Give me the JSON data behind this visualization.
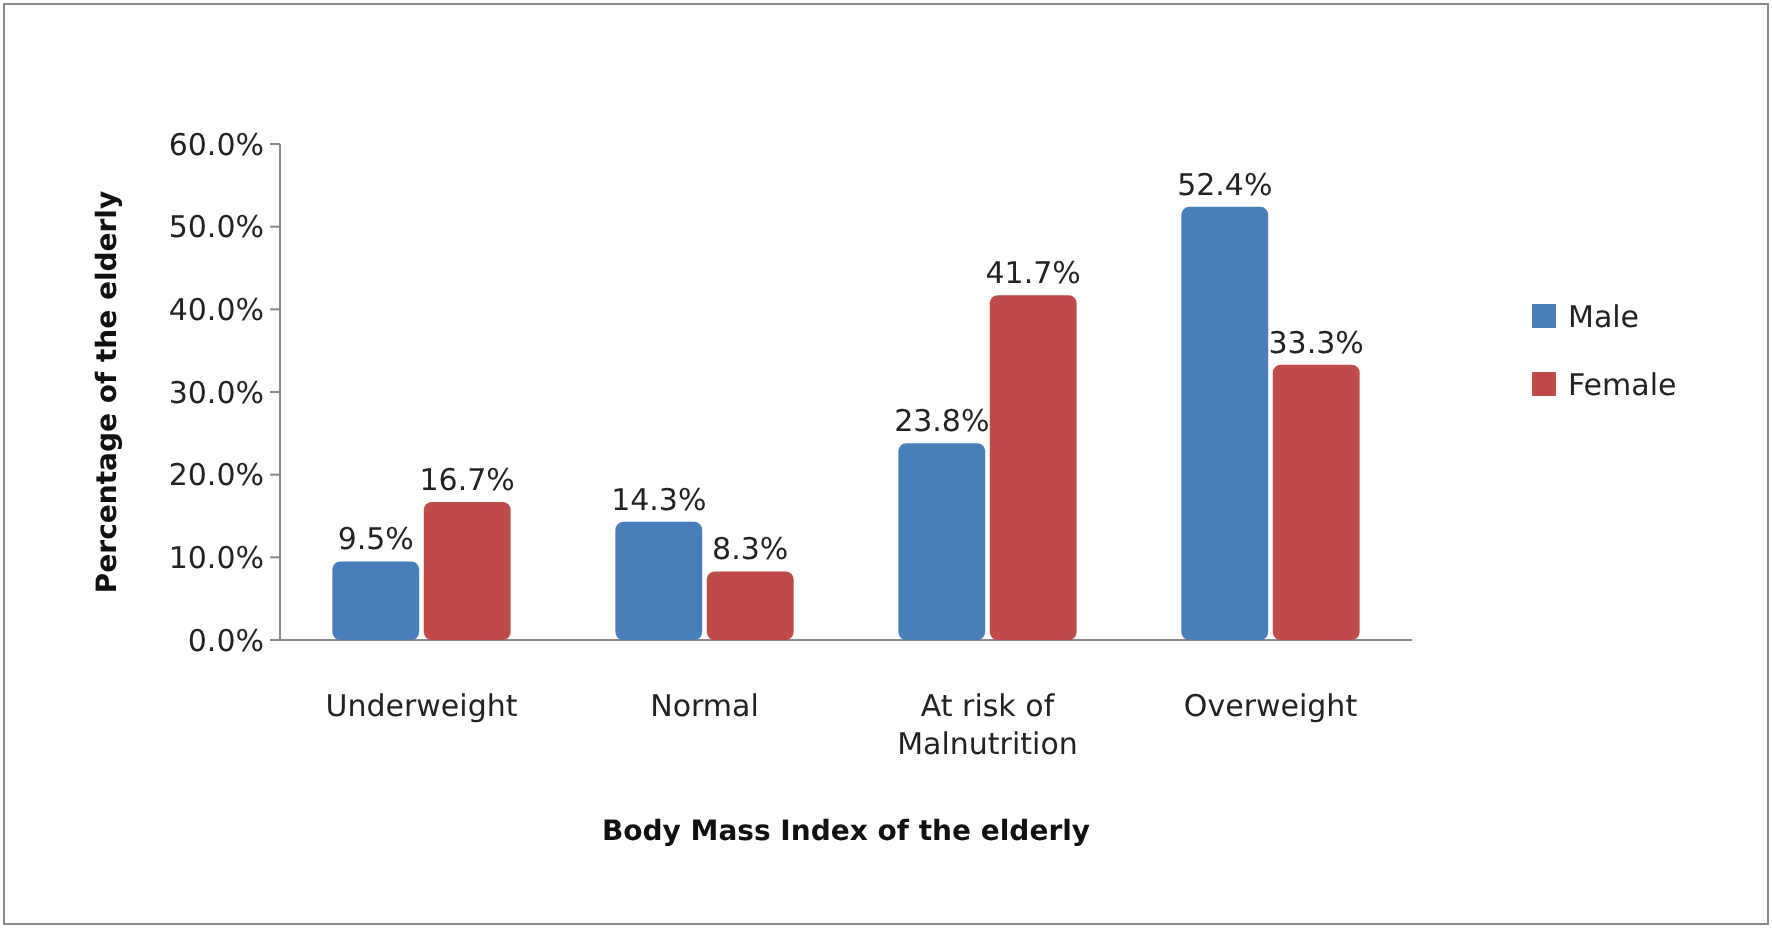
{
  "chart_data": {
    "type": "bar",
    "xlabel": "Body Mass Index of the elderly",
    "ylabel": "Percentage of the elderly",
    "categories": [
      "Underweight",
      "Normal",
      "At risk of Malnutrition",
      "Overweight"
    ],
    "series": [
      {
        "name": "Male",
        "color": "#4a7ebb",
        "values": [
          9.5,
          14.3,
          23.8,
          52.4
        ],
        "value_labels": [
          "9.5%",
          "14.3%",
          "23.8%",
          "52.4%"
        ]
      },
      {
        "name": "Female",
        "color": "#be4b48",
        "values": [
          16.7,
          8.3,
          41.7,
          33.3
        ],
        "value_labels": [
          "16.7%",
          "8.3%",
          "41.7%",
          "33.3%"
        ]
      }
    ],
    "ylim": [
      0,
      60
    ],
    "yticks": [
      {
        "value": 0,
        "label": "0.0%"
      },
      {
        "value": 10,
        "label": "10.0%"
      },
      {
        "value": 20,
        "label": "20.0%"
      },
      {
        "value": 30,
        "label": "30.0%"
      },
      {
        "value": 40,
        "label": "40.0%"
      },
      {
        "value": 50,
        "label": "50.0%"
      },
      {
        "value": 60,
        "label": "60.0%"
      }
    ],
    "legend": "right",
    "grid": false
  }
}
